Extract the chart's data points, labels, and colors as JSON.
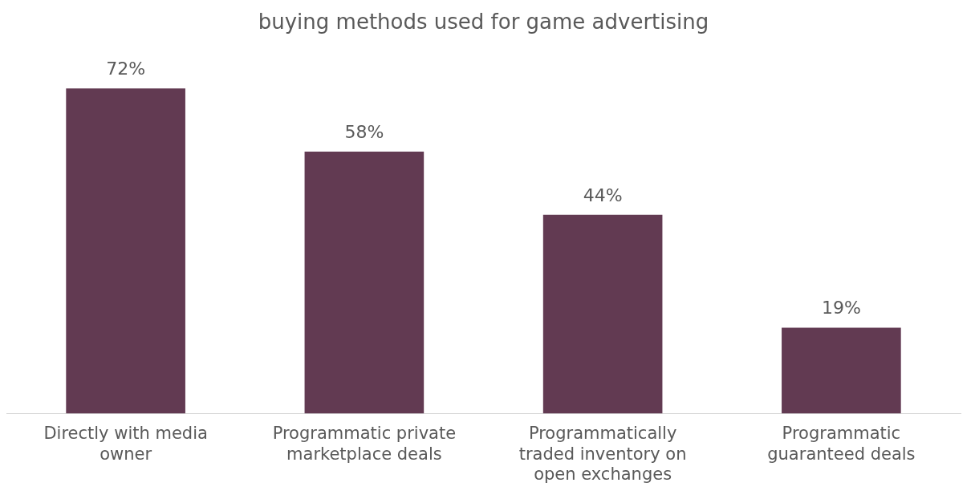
{
  "chart_data": {
    "type": "bar",
    "title": "buying methods used for game advertising",
    "categories": [
      "Directly with media owner",
      "Programmatic private marketplace deals",
      "Programmatically traded inventory on open exchanges",
      "Programmatic guaranteed deals"
    ],
    "values": [
      72,
      58,
      44,
      19
    ],
    "value_labels": [
      "72%",
      "58%",
      "44%",
      "19%"
    ],
    "color": "#623a52",
    "grid": false,
    "legend": false,
    "tick_labels": "x"
  }
}
